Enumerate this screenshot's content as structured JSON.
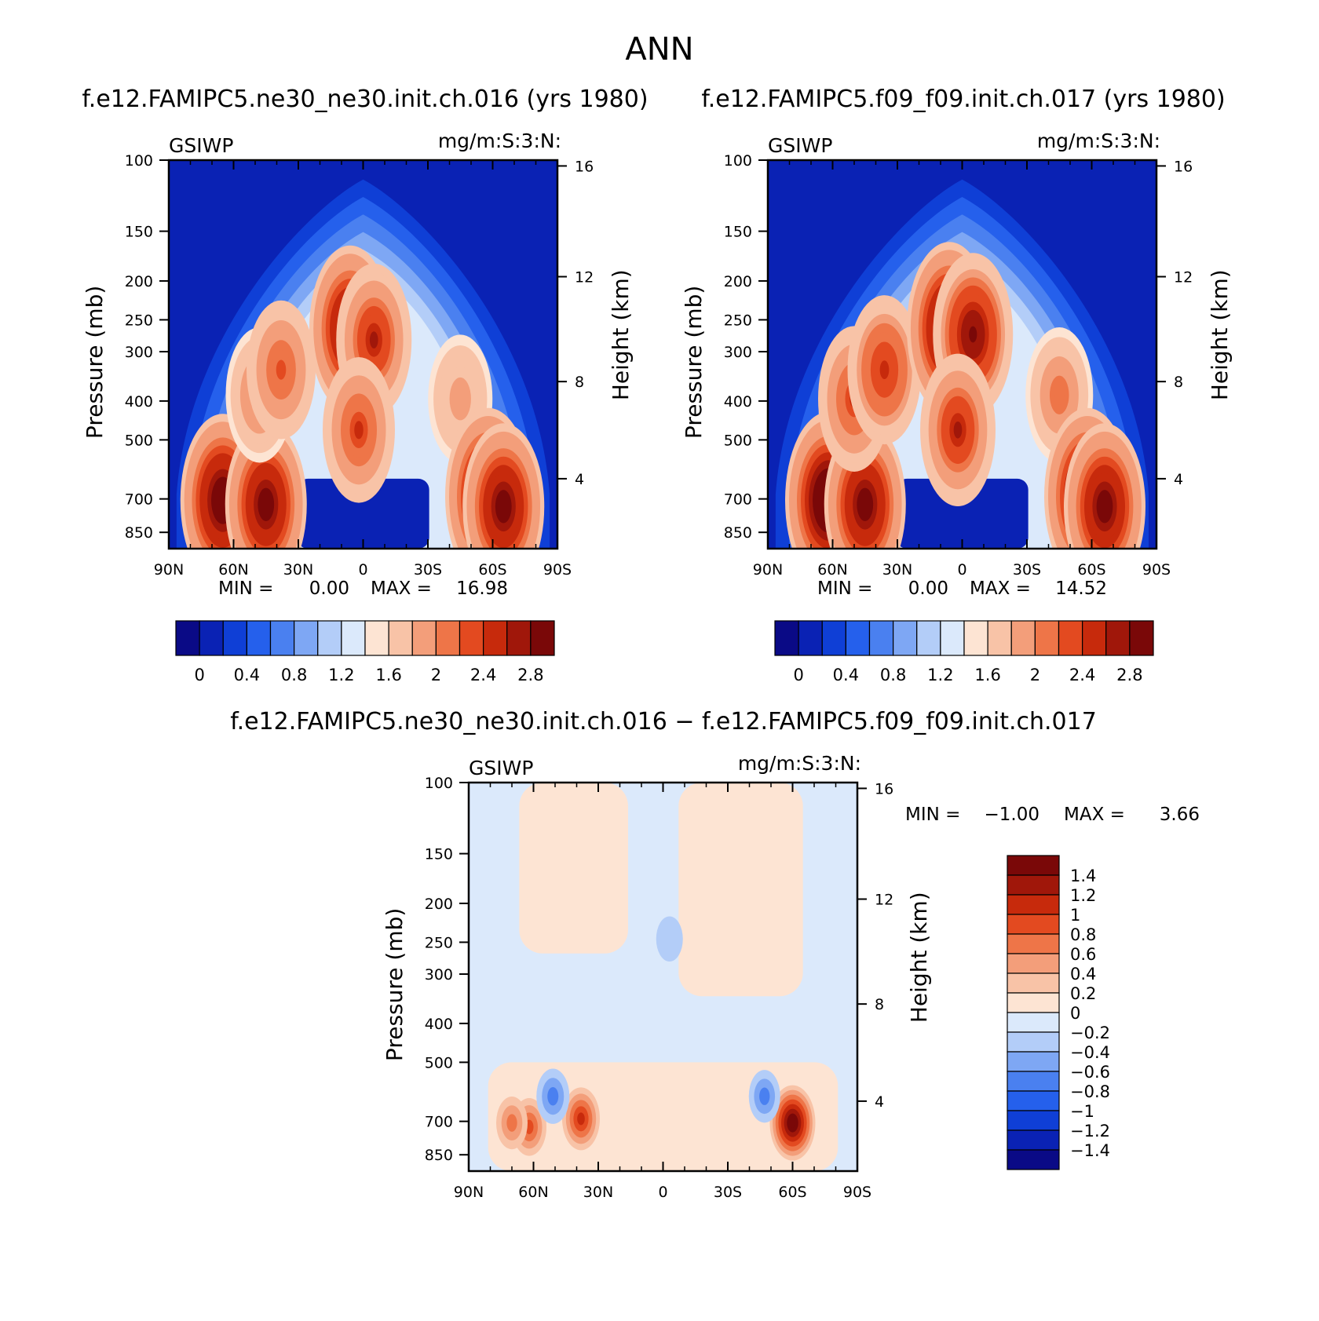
{
  "page_title": "ANN",
  "colors": {
    "base_scale": [
      "#0a0a86",
      "#0a22b4",
      "#0f3fd6",
      "#2560ec",
      "#4a80f0",
      "#7ea7f4",
      "#b3cdf8",
      "#dbe9fb",
      "#fde4d3",
      "#f8c3a7",
      "#f39e7a",
      "#ee7548",
      "#e34a20",
      "#c72a0c",
      "#a0170a",
      "#7a0808"
    ],
    "diff_scale": [
      "#0a0a86",
      "#0a22b4",
      "#0f3fd6",
      "#2560ec",
      "#4a80f0",
      "#7ea7f4",
      "#b3cdf8",
      "#dbe9fb",
      "#fde4d3",
      "#f8c3a7",
      "#f39e7a",
      "#ee7548",
      "#e34a20",
      "#c72a0c",
      "#a0170a",
      "#7a0808"
    ]
  },
  "chart_data": [
    {
      "id": "panel1",
      "type": "heatmap",
      "title": "f.e12.FAMIPC5.ne30_ne30.init.ch.016 (yrs 1980)",
      "left_label": "GSIWP",
      "right_label": "mg/m:S:3:N:",
      "ylabel": "Pressure (mb)",
      "y2label": "Height (km)",
      "x_ticks": [
        "90N",
        "60N",
        "30N",
        "0",
        "30S",
        "60S",
        "90S"
      ],
      "y_ticks": [
        "100",
        "150",
        "200",
        "250",
        "300",
        "400",
        "500",
        "700",
        "850"
      ],
      "y2_ticks": [
        "16",
        "12",
        "8",
        "4"
      ],
      "stats": {
        "min_label": "MIN =",
        "min": "0.00",
        "max_label": "MAX =",
        "max": "16.98"
      },
      "colorbar_labels": [
        "0",
        "0.4",
        "0.8",
        "1.2",
        "1.6",
        "2",
        "2.4",
        "2.8"
      ],
      "features": [
        {
          "lat": 65,
          "p": 800,
          "value": 3.2
        },
        {
          "lat": 45,
          "p": 820,
          "value": 3.0
        },
        {
          "lat": 48,
          "p": 420,
          "value": 2.1
        },
        {
          "lat": 38,
          "p": 360,
          "value": 2.2
        },
        {
          "lat": 6,
          "p": 280,
          "value": 3.0
        },
        {
          "lat": -5,
          "p": 300,
          "value": 2.6
        },
        {
          "lat": 2,
          "p": 520,
          "value": 2.4
        },
        {
          "lat": -45,
          "p": 430,
          "value": 1.9
        },
        {
          "lat": -58,
          "p": 780,
          "value": 3.3
        },
        {
          "lat": -65,
          "p": 830,
          "value": 3.0
        }
      ]
    },
    {
      "id": "panel2",
      "type": "heatmap",
      "title": "f.e12.FAMIPC5.f09_f09.init.ch.017 (yrs 1980)",
      "left_label": "GSIWP",
      "right_label": "mg/m:S:3:N:",
      "ylabel": "Pressure (mb)",
      "y2label": "Height (km)",
      "x_ticks": [
        "90N",
        "60N",
        "30N",
        "0",
        "30S",
        "60S",
        "90S"
      ],
      "y_ticks": [
        "100",
        "150",
        "200",
        "250",
        "300",
        "400",
        "500",
        "700",
        "850"
      ],
      "y2_ticks": [
        "16",
        "12",
        "8",
        "4"
      ],
      "stats": {
        "min_label": "MIN =",
        "min": "0.00",
        "max_label": "MAX =",
        "max": "14.52"
      },
      "colorbar_labels": [
        "0",
        "0.4",
        "0.8",
        "1.2",
        "1.6",
        "2",
        "2.4",
        "2.8"
      ],
      "features": [
        {
          "lat": 62,
          "p": 800,
          "value": 3.3
        },
        {
          "lat": 45,
          "p": 820,
          "value": 3.0
        },
        {
          "lat": 50,
          "p": 430,
          "value": 2.4
        },
        {
          "lat": 36,
          "p": 360,
          "value": 2.5
        },
        {
          "lat": 6,
          "p": 280,
          "value": 3.2
        },
        {
          "lat": -5,
          "p": 290,
          "value": 2.9
        },
        {
          "lat": 2,
          "p": 520,
          "value": 2.6
        },
        {
          "lat": -45,
          "p": 420,
          "value": 2.1
        },
        {
          "lat": -58,
          "p": 780,
          "value": 3.3
        },
        {
          "lat": -66,
          "p": 830,
          "value": 3.0
        }
      ]
    },
    {
      "id": "panel3",
      "type": "heatmap",
      "title": "f.e12.FAMIPC5.ne30_ne30.init.ch.016 − f.e12.FAMIPC5.f09_f09.init.ch.017",
      "left_label": "GSIWP",
      "right_label": "mg/m:S:3:N:",
      "ylabel": "Pressure (mb)",
      "y2label": "Height (km)",
      "x_ticks": [
        "90N",
        "60N",
        "30N",
        "0",
        "30S",
        "60S",
        "90S"
      ],
      "y_ticks": [
        "100",
        "150",
        "200",
        "250",
        "300",
        "400",
        "500",
        "700",
        "850"
      ],
      "y2_ticks": [
        "16",
        "12",
        "8",
        "4"
      ],
      "stats": {
        "min_label": "MIN =",
        "min": "−1.00",
        "max_label": "MAX =",
        "max": "3.66"
      },
      "colorbar_labels": [
        "1.4",
        "1.2",
        "1",
        "0.8",
        "0.6",
        "0.4",
        "0.2",
        "0",
        "−0.2",
        "−0.4",
        "−0.6",
        "−0.8",
        "−1",
        "−1.2",
        "−1.4"
      ],
      "features": [
        {
          "lat": -60,
          "p": 800,
          "value": 1.5
        },
        {
          "lat": 38,
          "p": 780,
          "value": 1.0
        },
        {
          "lat": 62,
          "p": 820,
          "value": 0.8
        },
        {
          "lat": 70,
          "p": 800,
          "value": 0.6
        },
        {
          "lat": 51,
          "p": 680,
          "value": -0.7
        },
        {
          "lat": -47,
          "p": 680,
          "value": -0.6
        },
        {
          "lat": -3,
          "p": 260,
          "value": -0.3
        }
      ]
    }
  ]
}
